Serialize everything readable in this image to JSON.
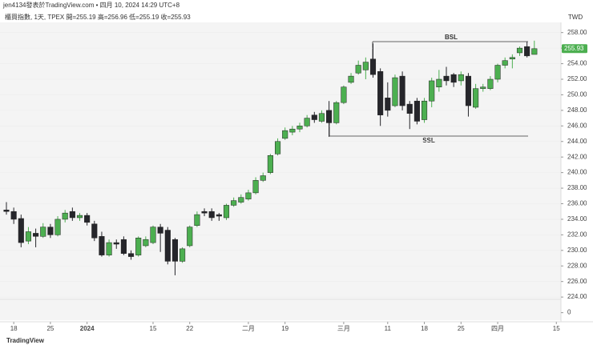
{
  "chart_data": {
    "type": "candlestick",
    "title": "jen4134發表於TradingView.com • 四月 10, 2024 14:29 UTC+8",
    "subtitle": "櫃買指數, 1天, TPEX  開=255.19  高=256.96  低=255.19  收=255.93",
    "currency": "TWD",
    "footer": "TradingView",
    "annotations": [
      "BSL",
      "SSL"
    ],
    "up_color": "#4caf50",
    "down_color": "#26262b",
    "categories": [
      null,
      "18",
      null,
      null,
      null,
      null,
      "25",
      null,
      null,
      null,
      null,
      "2024",
      null,
      null,
      null,
      null,
      null,
      null,
      null,
      null,
      "15",
      null,
      null,
      null,
      null,
      "22",
      null,
      null,
      null,
      null,
      null,
      null,
      null,
      "二月",
      null,
      null,
      null,
      null,
      "19",
      null,
      null,
      null,
      null,
      null,
      null,
      null,
      "三月",
      null,
      null,
      null,
      null,
      null,
      "11",
      null,
      null,
      null,
      null,
      "18",
      null,
      null,
      null,
      null,
      "25",
      null,
      null,
      null,
      null,
      "四月",
      null,
      null,
      null,
      null,
      null,
      null,
      null,
      "15",
      null
    ],
    "open": [
      235.2,
      235.0,
      234.1,
      231.2,
      232.2,
      231.8,
      233.0,
      232.0,
      234.0,
      235.0,
      234.2,
      234.5,
      233.4,
      231.8,
      229.4,
      231.0,
      231.4,
      229.6,
      229.4,
      230.6,
      231.0,
      233.0,
      232.6,
      231.4,
      228.6,
      230.6,
      233.2,
      235.0,
      235.0,
      234.6,
      234.2,
      235.8,
      236.2,
      236.6,
      237.4,
      239.0,
      240.0,
      242.4,
      244.4,
      245.2,
      245.6,
      246.0,
      247.4,
      246.6,
      248.0,
      246.4,
      249.0,
      251.6,
      252.8,
      253.2,
      254.6,
      253.0,
      249.6,
      248.6,
      252.4,
      248.8,
      249.2,
      246.8,
      249.2,
      251.0,
      252.4,
      252.6,
      251.8,
      252.4,
      248.4,
      250.8,
      250.8,
      252.0,
      253.8,
      254.6,
      255.4,
      256.2,
      255.19,
      null,
      null,
      null,
      null
    ],
    "high": [
      236.2,
      235.5,
      234.6,
      233.0,
      232.8,
      233.5,
      233.4,
      234.4,
      235.2,
      235.5,
      234.8,
      234.8,
      233.8,
      232.4,
      231.4,
      231.4,
      231.8,
      230.0,
      231.8,
      231.8,
      233.2,
      233.4,
      233.0,
      231.6,
      230.4,
      233.2,
      235.0,
      235.4,
      235.4,
      234.8,
      236.0,
      236.8,
      237.2,
      237.8,
      239.4,
      240.0,
      242.4,
      244.4,
      245.8,
      246.0,
      246.4,
      247.4,
      247.8,
      248.0,
      249.2,
      249.2,
      251.2,
      252.8,
      254.4,
      254.8,
      256.6,
      253.4,
      251.6,
      252.6,
      253.0,
      249.2,
      249.6,
      249.6,
      252.2,
      253.2,
      253.6,
      252.8,
      253.0,
      252.8,
      251.4,
      251.4,
      252.4,
      254.0,
      254.8,
      255.2,
      256.2,
      256.8,
      256.96,
      null,
      null,
      null,
      null
    ],
    "low": [
      234.6,
      233.4,
      230.4,
      230.8,
      230.4,
      231.6,
      231.6,
      231.8,
      233.6,
      233.8,
      233.8,
      233.2,
      231.2,
      229.2,
      229.2,
      230.2,
      229.4,
      228.8,
      229.2,
      230.4,
      230.8,
      229.8,
      228.2,
      226.8,
      228.4,
      230.4,
      233.0,
      234.4,
      233.8,
      233.8,
      233.9,
      235.6,
      236.0,
      236.4,
      237.2,
      238.8,
      239.8,
      242.2,
      244.2,
      244.8,
      245.2,
      245.8,
      246.4,
      246.4,
      244.6,
      246.2,
      248.8,
      251.4,
      252.6,
      252.0,
      252.2,
      246.0,
      247.2,
      248.4,
      248.0,
      245.6,
      246.2,
      246.4,
      248.4,
      250.4,
      251.2,
      251.0,
      251.2,
      247.2,
      248.2,
      250.4,
      250.6,
      251.6,
      253.4,
      253.4,
      255.0,
      254.8,
      255.19,
      null,
      null,
      null,
      null
    ],
    "close": [
      235.0,
      234.0,
      231.0,
      232.4,
      231.8,
      233.0,
      232.0,
      234.0,
      234.8,
      234.2,
      234.5,
      233.6,
      231.6,
      229.4,
      231.0,
      230.8,
      229.6,
      229.2,
      231.6,
      231.4,
      233.0,
      232.2,
      228.6,
      228.6,
      230.2,
      233.0,
      234.6,
      234.8,
      234.2,
      234.4,
      235.8,
      236.4,
      236.8,
      237.4,
      239.0,
      239.6,
      242.2,
      244.0,
      245.4,
      245.6,
      246.0,
      247.0,
      246.8,
      247.6,
      246.4,
      249.0,
      251.0,
      252.4,
      253.8,
      254.2,
      252.6,
      247.4,
      248.0,
      252.2,
      248.6,
      247.6,
      246.6,
      249.2,
      251.8,
      252.0,
      251.8,
      251.6,
      252.6,
      248.6,
      250.8,
      251.0,
      252.0,
      253.8,
      254.4,
      254.8,
      256.0,
      255.0,
      255.93,
      null,
      null,
      null,
      null
    ],
    "ylim": [
      223.6,
      259.1
    ],
    "yticks": [
      {
        "value": 224,
        "label": "224.00"
      },
      {
        "value": 226,
        "label": "226.00"
      },
      {
        "value": 228,
        "label": "228.00"
      },
      {
        "value": 230,
        "label": "230.00"
      },
      {
        "value": 232,
        "label": "232.00"
      },
      {
        "value": 234,
        "label": "234.00"
      },
      {
        "value": 236,
        "label": "236.00"
      },
      {
        "value": 238,
        "label": "238.00"
      },
      {
        "value": 240,
        "label": "240.00"
      },
      {
        "value": 242,
        "label": "242.00"
      },
      {
        "value": 244,
        "label": "244.00"
      },
      {
        "value": 246,
        "label": "246.00"
      },
      {
        "value": 248,
        "label": "248.00"
      },
      {
        "value": 250,
        "label": "250.00"
      },
      {
        "value": 252,
        "label": "252.00"
      },
      {
        "value": 254,
        "label": "254.00"
      },
      {
        "value": 256,
        "label": "256.00"
      },
      {
        "value": 258,
        "label": "258.00"
      }
    ],
    "y2lim": [
      -0.6,
      1
    ],
    "y2ticks": [
      0
    ]
  }
}
